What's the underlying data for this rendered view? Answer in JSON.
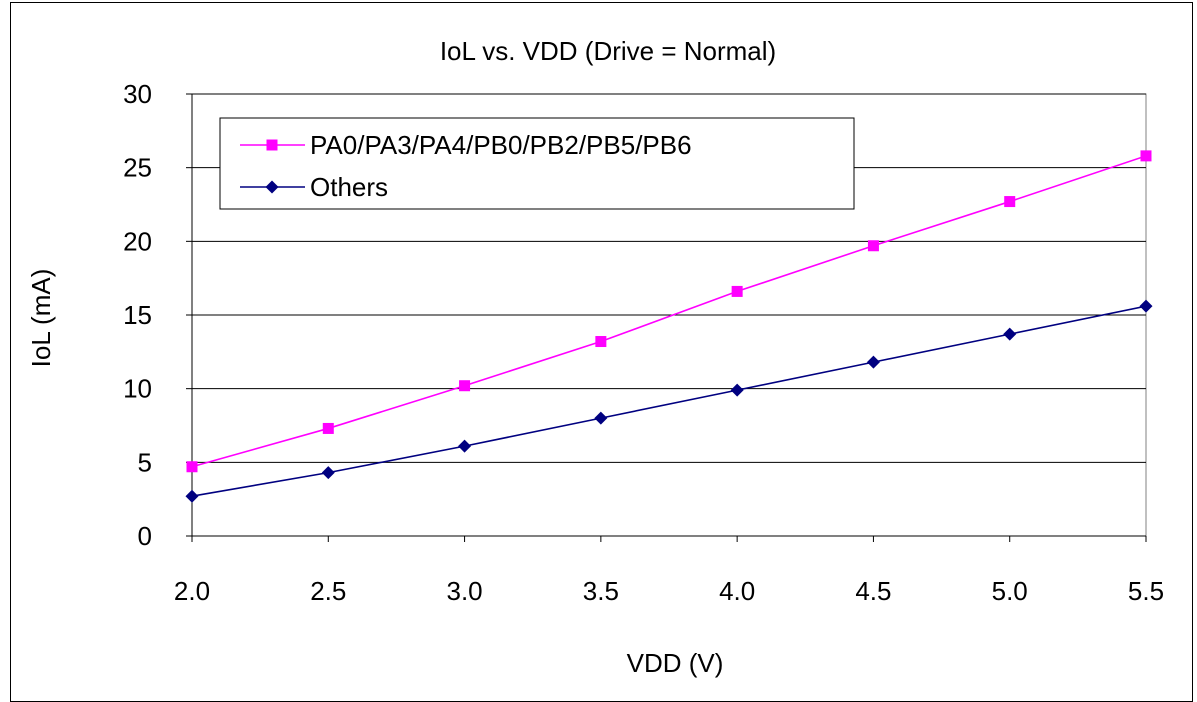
{
  "chart_data": {
    "type": "line",
    "title": "IoL vs. VDD (Drive = Normal)",
    "xlabel": "VDD (V)",
    "ylabel": "IoL (mA)",
    "x": [
      2.0,
      2.5,
      3.0,
      3.5,
      4.0,
      4.5,
      5.0,
      5.5
    ],
    "x_tick_labels": [
      "2.0",
      "2.5",
      "3.0",
      "3.5",
      "4.0",
      "4.5",
      "5.0",
      "5.5"
    ],
    "y_tick_labels": [
      "0",
      "5",
      "10",
      "15",
      "20",
      "25",
      "30"
    ],
    "xlim": [
      2.0,
      5.5
    ],
    "ylim": [
      0,
      30
    ],
    "y_ticks": [
      0,
      5,
      10,
      15,
      20,
      25,
      30
    ],
    "grid": "horizontal",
    "legend_position": "top-left",
    "series": [
      {
        "name": "PA0/PA3/PA4/PB0/PB2/PB5/PB6",
        "color": "#ff00ff",
        "marker": "square",
        "values": [
          4.7,
          7.3,
          10.2,
          13.2,
          16.6,
          19.7,
          22.7,
          25.8
        ]
      },
      {
        "name": "Others",
        "color": "#000080",
        "marker": "diamond",
        "values": [
          2.7,
          4.3,
          6.1,
          8.0,
          9.9,
          11.8,
          13.7,
          15.6
        ]
      }
    ]
  }
}
